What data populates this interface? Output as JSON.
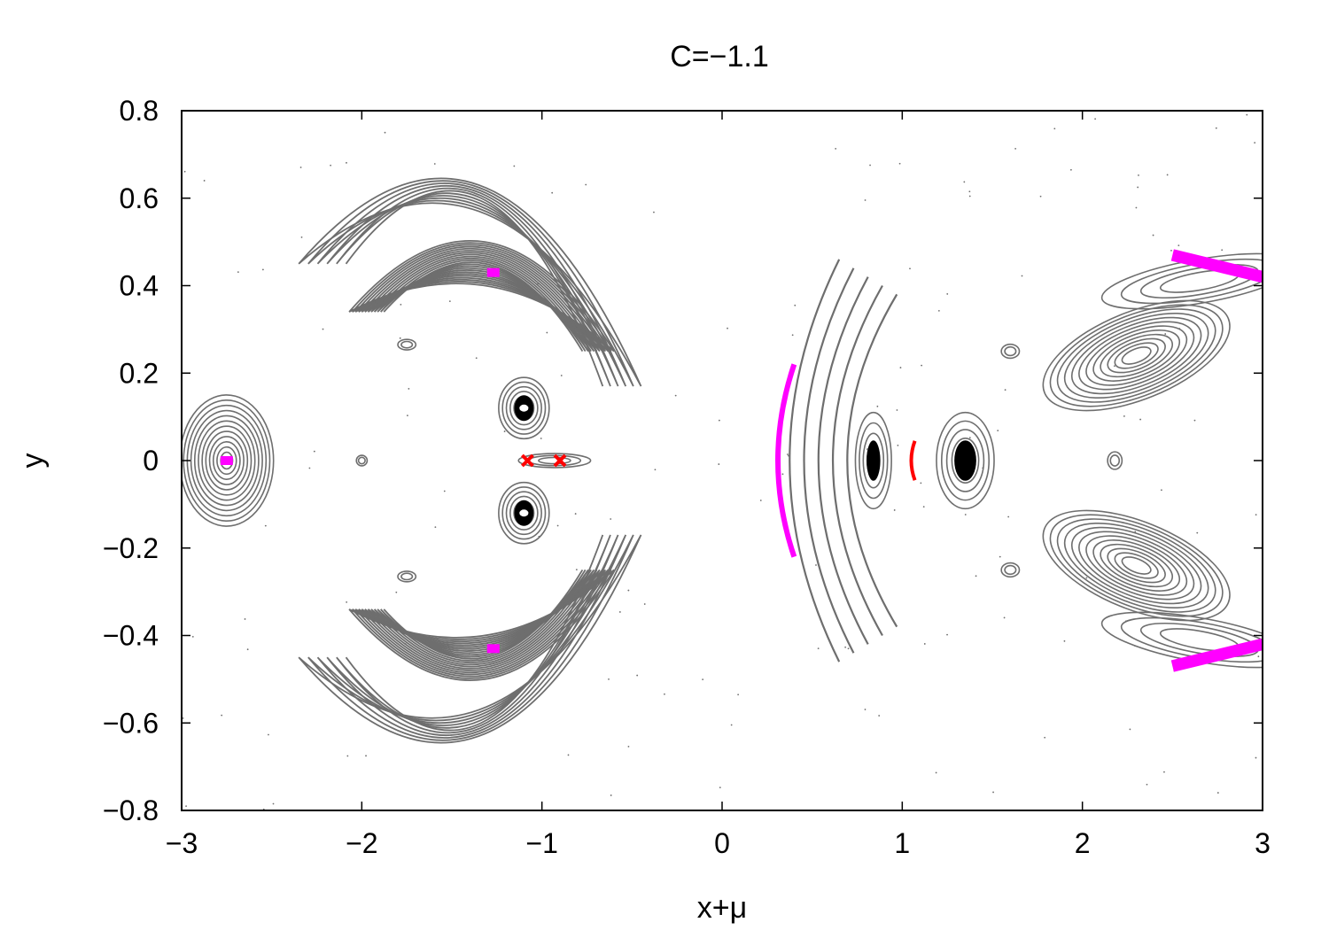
{
  "chart_data": {
    "type": "scatter",
    "title": "C=−1.1",
    "xlabel": "x+μ",
    "ylabel": "y",
    "xlim": [
      -3,
      3
    ],
    "ylim": [
      -0.8,
      0.8
    ],
    "grid": false,
    "legend": "none",
    "x_ticks": [
      -3,
      -2,
      -1,
      0,
      1,
      2,
      3
    ],
    "x_tick_labels": [
      "−3",
      "−2",
      "−1",
      "0",
      "1",
      "2",
      "3"
    ],
    "y_ticks": [
      -0.8,
      -0.6,
      -0.4,
      -0.2,
      0,
      0.2,
      0.4,
      0.6,
      0.8
    ],
    "y_tick_labels": [
      "−0.8",
      "−0.6",
      "−0.4",
      "−0.2",
      "0",
      "0.2",
      "0.4",
      "0.6",
      "0.8"
    ],
    "colors": {
      "orbits": "#6e6e6e",
      "dense_orbits": "#000000",
      "periodic_magenta": "#ff00ff",
      "periodic_red": "#ff0000",
      "axes": "#000000"
    },
    "structures": {
      "closed_orbit_families": [
        {
          "name": "left-lobe",
          "cx": -2.75,
          "cy": 0,
          "rx": 0.26,
          "ry": 0.15,
          "rings": 12
        },
        {
          "name": "upper-center",
          "cx": -1.1,
          "cy": 0.12,
          "rx": 0.14,
          "ry": 0.07,
          "rings": 6
        },
        {
          "name": "lower-center",
          "cx": -1.1,
          "cy": -0.12,
          "rx": 0.14,
          "ry": 0.07,
          "rings": 6
        },
        {
          "name": "bar",
          "cx": -0.93,
          "cy": 0,
          "rx": 0.2,
          "ry": 0.016,
          "rings": 3
        },
        {
          "name": "small-left",
          "cx": -2.0,
          "cy": 0,
          "rx": 0.03,
          "ry": 0.012,
          "rings": 2
        },
        {
          "name": "small-upper-left",
          "cx": -1.75,
          "cy": 0.265,
          "rx": 0.05,
          "ry": 0.012,
          "rings": 2
        },
        {
          "name": "small-lower-left",
          "cx": -1.75,
          "cy": -0.265,
          "rx": 0.05,
          "ry": 0.012,
          "rings": 2
        },
        {
          "name": "right-a",
          "cx": 0.84,
          "cy": 0,
          "rx": 0.1,
          "ry": 0.11,
          "rings": 4
        },
        {
          "name": "right-b",
          "cx": 1.35,
          "cy": 0,
          "rx": 0.16,
          "ry": 0.11,
          "rings": 5
        },
        {
          "name": "small-right",
          "cx": 2.18,
          "cy": 0,
          "rx": 0.04,
          "ry": 0.02,
          "rings": 2
        },
        {
          "name": "small-upper-right",
          "cx": 1.6,
          "cy": 0.25,
          "rx": 0.05,
          "ry": 0.016,
          "rings": 2
        },
        {
          "name": "small-lower-right",
          "cx": 1.6,
          "cy": -0.25,
          "rx": 0.05,
          "ry": 0.016,
          "rings": 2
        }
      ],
      "banana_families": [
        {
          "name": "upper-left-banana",
          "tips": [
            [
              -2.07,
              0.34
            ],
            [
              -0.6,
              0.25
            ]
          ],
          "peak": [
            -1.3,
            0.5
          ],
          "peak_inner": [
            -1.3,
            0.4
          ],
          "rings": 12
        },
        {
          "name": "upper-left-outer",
          "tips": [
            [
              -2.35,
              0.45
            ],
            [
              -0.45,
              0.17
            ]
          ],
          "peak": [
            -1.3,
            0.63
          ],
          "peak_inner": [
            -1.3,
            0.57
          ],
          "rings": 6
        },
        {
          "name": "lower-left-banana",
          "tips": [
            [
              -2.07,
              -0.34
            ],
            [
              -0.6,
              -0.25
            ]
          ],
          "peak": [
            -1.3,
            -0.5
          ],
          "peak_inner": [
            -1.3,
            -0.4
          ],
          "rings": 12
        },
        {
          "name": "lower-left-outer",
          "tips": [
            [
              -2.35,
              -0.45
            ],
            [
              -0.45,
              -0.17
            ]
          ],
          "peak": [
            -1.3,
            -0.63
          ],
          "peak_inner": [
            -1.3,
            -0.57
          ],
          "rings": 6
        }
      ],
      "arcs": [
        {
          "cx": 0.67,
          "r": 0.33,
          "yr": 0.46,
          "count": 5
        },
        {
          "cx": 0.3,
          "r": 0.1,
          "yr": 0.06,
          "count": 1
        }
      ],
      "tilted_families": [
        {
          "name": "upper-right-eye",
          "cx": 2.3,
          "cy": 0.24,
          "rx": 0.55,
          "ry": 0.1,
          "angle_deg": 22,
          "rings": 12
        },
        {
          "name": "lower-right-eye",
          "cx": 2.3,
          "cy": -0.24,
          "rx": 0.55,
          "ry": 0.1,
          "angle_deg": -22,
          "rings": 12
        },
        {
          "name": "upper-right-outer",
          "cx": 2.65,
          "cy": 0.41,
          "rx": 0.55,
          "ry": 0.05,
          "angle_deg": 10,
          "rings": 4
        },
        {
          "name": "lower-right-outer",
          "cx": 2.65,
          "cy": -0.41,
          "rx": 0.55,
          "ry": 0.05,
          "angle_deg": -10,
          "rings": 4
        }
      ],
      "periodic_points_magenta": [
        [
          -2.75,
          0
        ],
        [
          -1.27,
          0.43
        ],
        [
          -1.27,
          -0.43
        ]
      ],
      "periodic_bands_magenta": [
        {
          "from": [
            2.5,
            0.47
          ],
          "to": [
            3.0,
            0.42
          ],
          "width": 0.015
        },
        {
          "from": [
            2.5,
            -0.47
          ],
          "to": [
            3.0,
            -0.42
          ],
          "width": 0.015
        },
        {
          "arc_x": 0.3,
          "y_from": -0.22,
          "y_to": 0.22,
          "bulge": 0.1
        }
      ],
      "periodic_points_red": [
        [
          -1.08,
          0
        ],
        [
          -0.9,
          0
        ]
      ],
      "periodic_arc_red": {
        "x": 1.06,
        "y_from": -0.045,
        "y_to": 0.045
      }
    }
  }
}
